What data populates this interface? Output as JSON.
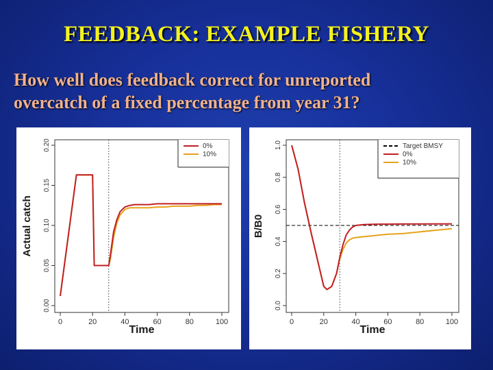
{
  "title": "FEEDBACK: EXAMPLE FISHERY",
  "question_lines": [
    "How well does feedback correct for unreported",
    "overcatch of a fixed percentage from year 31?"
  ],
  "colors": {
    "title": "#f4f21e",
    "question": "#f0b28c",
    "series_0pct": "#c01f24",
    "series_10pct": "#e6a21b",
    "target": "#000000"
  },
  "chart_data": [
    {
      "type": "line",
      "xlabel": "Time",
      "ylabel": "Actual catch",
      "xlim": [
        0,
        100
      ],
      "ylim": [
        0,
        0.2
      ],
      "x_ticks": [
        "0",
        "20",
        "40",
        "60",
        "80",
        "100"
      ],
      "y_ticks": [
        "0.00",
        "0.05",
        "0.10",
        "0.15",
        "0.20"
      ],
      "y_tick_values": [
        0,
        0.05,
        0.1,
        0.15,
        0.2
      ],
      "vline_x": 30,
      "legend": {
        "position": "top-right",
        "entries": [
          "0%",
          "10%"
        ]
      },
      "series": [
        {
          "name": "0%",
          "x": [
            0,
            10,
            20,
            21,
            30,
            31,
            33,
            35,
            37,
            40,
            43,
            46,
            50,
            55,
            60,
            65,
            70,
            75,
            80,
            85,
            90,
            95,
            100
          ],
          "y": [
            0.012,
            0.163,
            0.163,
            0.05,
            0.05,
            0.063,
            0.092,
            0.107,
            0.117,
            0.123,
            0.125,
            0.126,
            0.126,
            0.126,
            0.127,
            0.127,
            0.127,
            0.127,
            0.127,
            0.127,
            0.127,
            0.127,
            0.127
          ]
        },
        {
          "name": "10%",
          "x": [
            0,
            10,
            20,
            21,
            30,
            31,
            33,
            35,
            37,
            40,
            43,
            46,
            50,
            55,
            60,
            65,
            70,
            75,
            80,
            85,
            90,
            95,
            100
          ],
          "y": [
            0.012,
            0.163,
            0.163,
            0.05,
            0.05,
            0.058,
            0.085,
            0.103,
            0.113,
            0.12,
            0.122,
            0.122,
            0.122,
            0.122,
            0.123,
            0.123,
            0.124,
            0.124,
            0.124,
            0.125,
            0.125,
            0.126,
            0.126
          ]
        }
      ]
    },
    {
      "type": "line",
      "xlabel": "Time",
      "ylabel": "B/B0",
      "xlim": [
        0,
        100
      ],
      "ylim": [
        0,
        1
      ],
      "x_ticks": [
        "0",
        "20",
        "40",
        "60",
        "80",
        "100"
      ],
      "y_ticks": [
        "0.0",
        "0.2",
        "0.4",
        "0.6",
        "0.8",
        "1.0"
      ],
      "y_tick_values": [
        0,
        0.2,
        0.4,
        0.6,
        0.8,
        1.0
      ],
      "vline_x": 30,
      "target_y": 0.5,
      "legend": {
        "position": "top-right",
        "entries": [
          "Target BMSY",
          "0%",
          "10%"
        ]
      },
      "series": [
        {
          "name": "0%",
          "x": [
            0,
            4,
            8,
            12,
            16,
            20,
            22,
            25,
            28,
            30,
            32,
            34,
            36,
            38,
            40,
            45,
            50,
            55,
            60,
            70,
            80,
            90,
            100
          ],
          "y": [
            1.0,
            0.85,
            0.64,
            0.46,
            0.29,
            0.12,
            0.1,
            0.12,
            0.2,
            0.3,
            0.38,
            0.44,
            0.47,
            0.49,
            0.5,
            0.505,
            0.507,
            0.508,
            0.508,
            0.509,
            0.509,
            0.51,
            0.51
          ]
        },
        {
          "name": "10%",
          "x": [
            0,
            4,
            8,
            12,
            16,
            20,
            22,
            25,
            28,
            30,
            32,
            34,
            36,
            38,
            40,
            45,
            50,
            55,
            60,
            70,
            80,
            90,
            100
          ],
          "y": [
            1.0,
            0.85,
            0.64,
            0.46,
            0.29,
            0.12,
            0.1,
            0.12,
            0.2,
            0.29,
            0.35,
            0.39,
            0.41,
            0.42,
            0.425,
            0.43,
            0.435,
            0.44,
            0.445,
            0.45,
            0.46,
            0.47,
            0.48
          ]
        }
      ]
    }
  ]
}
